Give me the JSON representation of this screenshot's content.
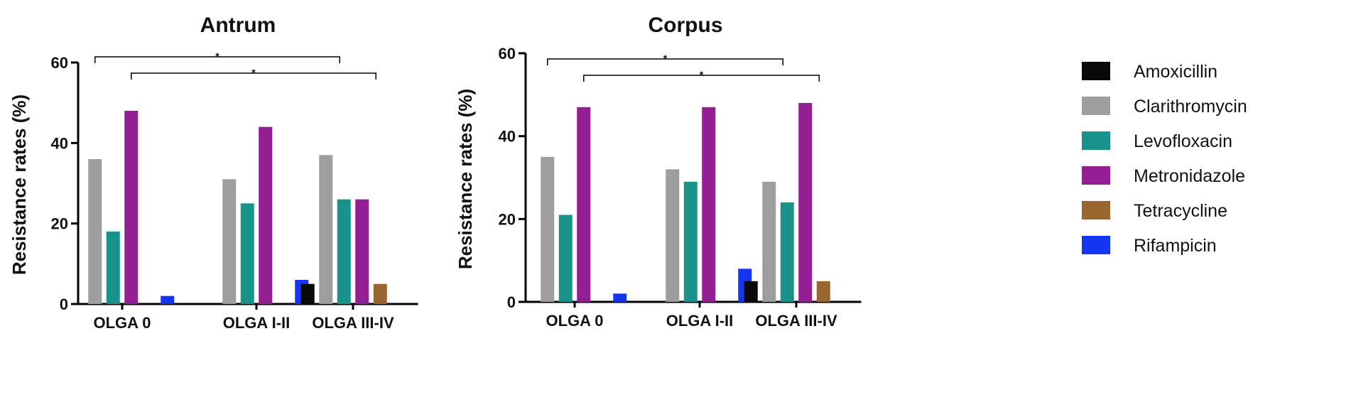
{
  "colors": {
    "Amoxicillin": "#0a0a0a",
    "Clarithromycin": "#9e9e9e",
    "Levofloxacin": "#18928b",
    "Metronidazole": "#941f94",
    "Tetracycline": "#9a6630",
    "Rifampicin": "#1536f0"
  },
  "legend": {
    "items": [
      "Amoxicillin",
      "Clarithromycin",
      "Levofloxacin",
      "Metronidazole",
      "Tetracycline",
      "Rifampicin"
    ]
  },
  "chart_data": [
    {
      "type": "bar",
      "title": "Antrum",
      "xlabel": "",
      "ylabel": "Resistance rates (%)",
      "ylim": [
        0,
        60
      ],
      "yticks": [
        0,
        20,
        40,
        60
      ],
      "categories": [
        "OLGA  0",
        "OLGA I-II",
        "OLGA III-IV"
      ],
      "series": [
        {
          "name": "Amoxicillin",
          "values": [
            0,
            0,
            5
          ]
        },
        {
          "name": "Clarithromycin",
          "values": [
            36,
            31,
            37
          ]
        },
        {
          "name": "Levofloxacin",
          "values": [
            18,
            25,
            26
          ]
        },
        {
          "name": "Metronidazole",
          "values": [
            48,
            44,
            26
          ]
        },
        {
          "name": "Tetracycline",
          "values": [
            0,
            0,
            5
          ]
        },
        {
          "name": "Rifampicin",
          "values": [
            2,
            6,
            0
          ]
        }
      ],
      "significance": [
        {
          "from": 0,
          "to": 2,
          "label": "*"
        },
        {
          "from": 1,
          "to": 3,
          "label": "*"
        }
      ]
    },
    {
      "type": "bar",
      "title": "Corpus",
      "xlabel": "",
      "ylabel": "Resistance rates (%)",
      "ylim": [
        0,
        60
      ],
      "yticks": [
        0,
        20,
        40,
        60
      ],
      "categories": [
        "OLGA  0",
        "OLGA I-II",
        "OLGA III-IV"
      ],
      "series": [
        {
          "name": "Amoxicillin",
          "values": [
            0,
            0,
            5
          ]
        },
        {
          "name": "Clarithromycin",
          "values": [
            35,
            32,
            29
          ]
        },
        {
          "name": "Levofloxacin",
          "values": [
            21,
            29,
            24
          ]
        },
        {
          "name": "Metronidazole",
          "values": [
            47,
            47,
            48
          ]
        },
        {
          "name": "Tetracycline",
          "values": [
            0,
            0,
            5
          ]
        },
        {
          "name": "Rifampicin",
          "values": [
            2,
            8,
            0
          ]
        }
      ],
      "significance": [
        {
          "from": 0,
          "to": 2,
          "label": "*"
        },
        {
          "from": 1,
          "to": 3,
          "label": "*"
        }
      ]
    }
  ]
}
